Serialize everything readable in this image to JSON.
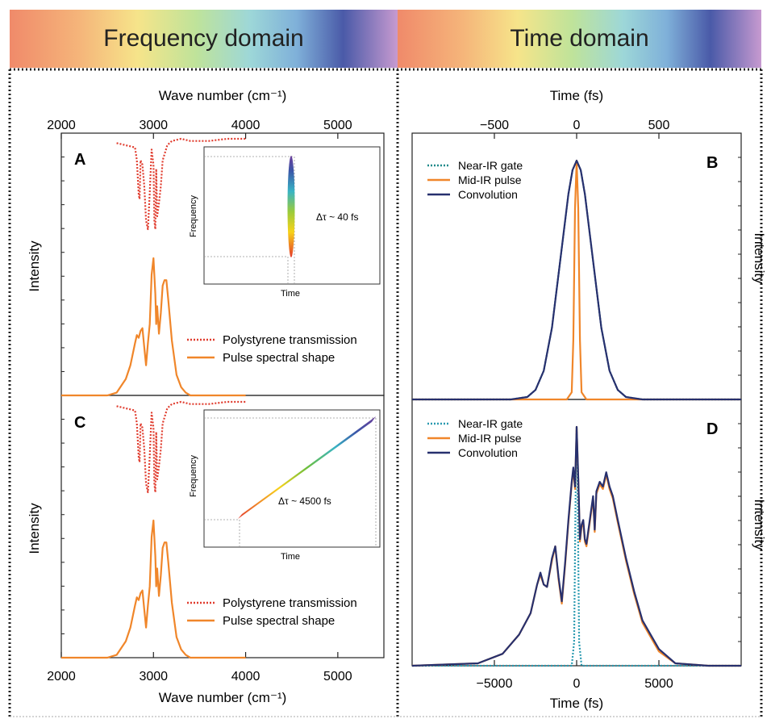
{
  "banners": {
    "left": "Frequency domain",
    "right": "Time domain"
  },
  "chart_data": [
    {
      "panel": "A",
      "type": "line",
      "x_top_label": "Wave number (cm⁻¹)",
      "ylabel": "Intensity",
      "xlim": [
        2000,
        5500
      ],
      "xticks": [
        2000,
        3000,
        4000,
        5000
      ],
      "series": [
        {
          "name": "Polystyrene transmission",
          "color": "#e03c2e",
          "style": "dotted",
          "x": [
            2600,
            2700,
            2800,
            2820,
            2840,
            2850,
            2860,
            2880,
            2900,
            2920,
            2940,
            2960,
            2980,
            3000,
            3010,
            3020,
            3030,
            3040,
            3060,
            3080,
            3100,
            3150,
            3200,
            3300,
            3400,
            3600,
            3800,
            4000
          ],
          "y": [
            0.98,
            0.97,
            0.96,
            0.9,
            0.74,
            0.72,
            0.9,
            0.88,
            0.78,
            0.62,
            0.58,
            0.75,
            0.95,
            0.88,
            0.62,
            0.58,
            0.86,
            0.64,
            0.7,
            0.78,
            0.9,
            0.97,
            0.99,
            1.0,
            0.99,
            0.99,
            1.0,
            1.0
          ]
        },
        {
          "name": "Pulse spectral shape",
          "color": "#f0862a",
          "style": "solid",
          "x": [
            2000,
            2500,
            2600,
            2700,
            2750,
            2800,
            2820,
            2840,
            2860,
            2880,
            2900,
            2920,
            2940,
            2960,
            2980,
            3000,
            3020,
            3030,
            3040,
            3060,
            3080,
            3100,
            3120,
            3140,
            3160,
            3200,
            3250,
            3300,
            3350,
            3400,
            3500,
            4000
          ],
          "y": [
            0,
            0.0,
            0.02,
            0.12,
            0.22,
            0.38,
            0.44,
            0.42,
            0.47,
            0.49,
            0.35,
            0.22,
            0.38,
            0.52,
            0.88,
            1.0,
            0.74,
            0.52,
            0.65,
            0.45,
            0.6,
            0.8,
            0.84,
            0.84,
            0.7,
            0.4,
            0.15,
            0.06,
            0.02,
            0.0,
            0.0,
            0.0
          ]
        }
      ],
      "inset": {
        "ylabel": "Frequency",
        "xlabel": "Time",
        "annotation": "Δτ ~ 40 fs"
      }
    },
    {
      "panel": "C",
      "type": "line",
      "xlabel": "Wave number (cm⁻¹)",
      "ylabel": "Intensity",
      "xlim": [
        2000,
        5500
      ],
      "xticks": [
        2000,
        3000,
        4000,
        5000
      ],
      "series": [
        {
          "name": "Polystyrene transmission",
          "color": "#e03c2e",
          "style": "dotted",
          "x": [
            2600,
            2700,
            2800,
            2820,
            2840,
            2850,
            2860,
            2880,
            2900,
            2920,
            2940,
            2960,
            2980,
            3000,
            3010,
            3020,
            3030,
            3040,
            3060,
            3080,
            3100,
            3150,
            3200,
            3300,
            3400,
            3600,
            3800,
            4000
          ],
          "y": [
            0.98,
            0.97,
            0.96,
            0.9,
            0.74,
            0.72,
            0.9,
            0.88,
            0.78,
            0.62,
            0.58,
            0.75,
            0.95,
            0.88,
            0.62,
            0.58,
            0.86,
            0.64,
            0.7,
            0.78,
            0.9,
            0.97,
            0.99,
            1.0,
            0.99,
            0.99,
            1.0,
            1.0
          ]
        },
        {
          "name": "Pulse spectral shape",
          "color": "#f0862a",
          "style": "solid",
          "x": [
            2000,
            2500,
            2600,
            2700,
            2750,
            2800,
            2820,
            2840,
            2860,
            2880,
            2900,
            2920,
            2940,
            2960,
            2980,
            3000,
            3020,
            3030,
            3040,
            3060,
            3080,
            3100,
            3120,
            3140,
            3160,
            3200,
            3250,
            3300,
            3350,
            3400,
            3500,
            4000
          ],
          "y": [
            0,
            0.0,
            0.02,
            0.12,
            0.22,
            0.38,
            0.44,
            0.42,
            0.47,
            0.49,
            0.35,
            0.22,
            0.38,
            0.52,
            0.88,
            1.0,
            0.74,
            0.52,
            0.65,
            0.45,
            0.6,
            0.8,
            0.84,
            0.84,
            0.7,
            0.4,
            0.15,
            0.06,
            0.02,
            0.0,
            0.0,
            0.0
          ]
        }
      ],
      "inset": {
        "ylabel": "Frequency",
        "xlabel": "Time",
        "annotation": "Δτ ~ 4500 fs"
      }
    },
    {
      "panel": "B",
      "type": "line",
      "x_top_label": "Time (fs)",
      "ylabel": "Intensity",
      "xlim": [
        -1000,
        1000
      ],
      "xticks": [
        -500,
        0,
        500
      ],
      "series": [
        {
          "name": "Near-IR gate",
          "color": "#1f8a8a",
          "style": "dotted",
          "x": [
            -1000,
            -400,
            -300,
            -250,
            -200,
            -150,
            -100,
            -50,
            -25,
            0,
            25,
            50,
            100,
            150,
            200,
            250,
            300,
            400,
            1000
          ],
          "y": [
            0,
            0.0,
            0.01,
            0.04,
            0.12,
            0.3,
            0.58,
            0.86,
            0.96,
            1.0,
            0.96,
            0.86,
            0.58,
            0.3,
            0.12,
            0.04,
            0.01,
            0.0,
            0
          ]
        },
        {
          "name": "Mid-IR pulse",
          "color": "#f0862a",
          "style": "solid",
          "x": [
            -1000,
            -60,
            -30,
            -20,
            -10,
            0,
            10,
            20,
            30,
            60,
            1000
          ],
          "y": [
            0,
            0.0,
            0.03,
            0.25,
            0.8,
            1.0,
            0.8,
            0.25,
            0.03,
            0.0,
            0
          ]
        },
        {
          "name": "Convolution",
          "color": "#27306e",
          "style": "solid",
          "x": [
            -1000,
            -400,
            -300,
            -250,
            -200,
            -150,
            -100,
            -50,
            -25,
            0,
            25,
            50,
            100,
            150,
            200,
            250,
            300,
            400,
            1000
          ],
          "y": [
            0,
            0.0,
            0.01,
            0.04,
            0.12,
            0.3,
            0.58,
            0.86,
            0.96,
            1.0,
            0.96,
            0.86,
            0.58,
            0.3,
            0.12,
            0.04,
            0.01,
            0.0,
            0
          ]
        }
      ]
    },
    {
      "panel": "D",
      "type": "line",
      "xlabel": "Time (fs)",
      "ylabel": "Intensity",
      "xlim": [
        -10000,
        10000
      ],
      "xticks": [
        -5000,
        0,
        5000
      ],
      "series": [
        {
          "name": "Near-IR gate",
          "color": "#2a9ab0",
          "style": "dotted",
          "x": [
            -10000,
            -300,
            -150,
            -50,
            0,
            50,
            150,
            300,
            10000
          ],
          "y": [
            0,
            0,
            0.1,
            0.8,
            1.0,
            0.8,
            0.1,
            0,
            0
          ]
        },
        {
          "name": "Mid-IR pulse",
          "color": "#f0862a",
          "style": "solid",
          "x": [
            -10000,
            -6000,
            -4500,
            -3500,
            -2800,
            -2400,
            -2200,
            -2000,
            -1800,
            -1500,
            -1300,
            -1100,
            -900,
            -700,
            -500,
            -300,
            -200,
            -100,
            0,
            100,
            200,
            300,
            400,
            500,
            600,
            800,
            1000,
            1100,
            1200,
            1400,
            1600,
            1800,
            2000,
            2200,
            2500,
            3000,
            3500,
            4000,
            5000,
            6000,
            8000,
            10000
          ],
          "y": [
            0,
            0.01,
            0.05,
            0.13,
            0.22,
            0.34,
            0.38,
            0.34,
            0.33,
            0.44,
            0.5,
            0.36,
            0.26,
            0.42,
            0.6,
            0.76,
            0.82,
            0.74,
            1.0,
            0.78,
            0.52,
            0.58,
            0.6,
            0.52,
            0.5,
            0.6,
            0.7,
            0.56,
            0.72,
            0.76,
            0.74,
            0.8,
            0.74,
            0.7,
            0.6,
            0.44,
            0.3,
            0.18,
            0.06,
            0.01,
            0.0,
            0
          ]
        },
        {
          "name": "Convolution",
          "color": "#27306e",
          "style": "solid",
          "x": [
            -10000,
            -6000,
            -4500,
            -3500,
            -2800,
            -2400,
            -2200,
            -2000,
            -1800,
            -1500,
            -1300,
            -1100,
            -900,
            -700,
            -500,
            -300,
            -200,
            -100,
            0,
            100,
            200,
            300,
            400,
            500,
            600,
            800,
            1000,
            1100,
            1200,
            1400,
            1600,
            1800,
            2000,
            2200,
            2500,
            3000,
            3500,
            4000,
            5000,
            6000,
            8000,
            10000
          ],
          "y": [
            0,
            0.01,
            0.05,
            0.13,
            0.22,
            0.34,
            0.39,
            0.34,
            0.33,
            0.45,
            0.5,
            0.37,
            0.27,
            0.43,
            0.61,
            0.77,
            0.83,
            0.75,
            1.0,
            0.79,
            0.53,
            0.59,
            0.61,
            0.53,
            0.51,
            0.61,
            0.71,
            0.57,
            0.73,
            0.77,
            0.75,
            0.81,
            0.75,
            0.71,
            0.61,
            0.45,
            0.31,
            0.19,
            0.07,
            0.01,
            0.0,
            0
          ]
        }
      ]
    }
  ]
}
